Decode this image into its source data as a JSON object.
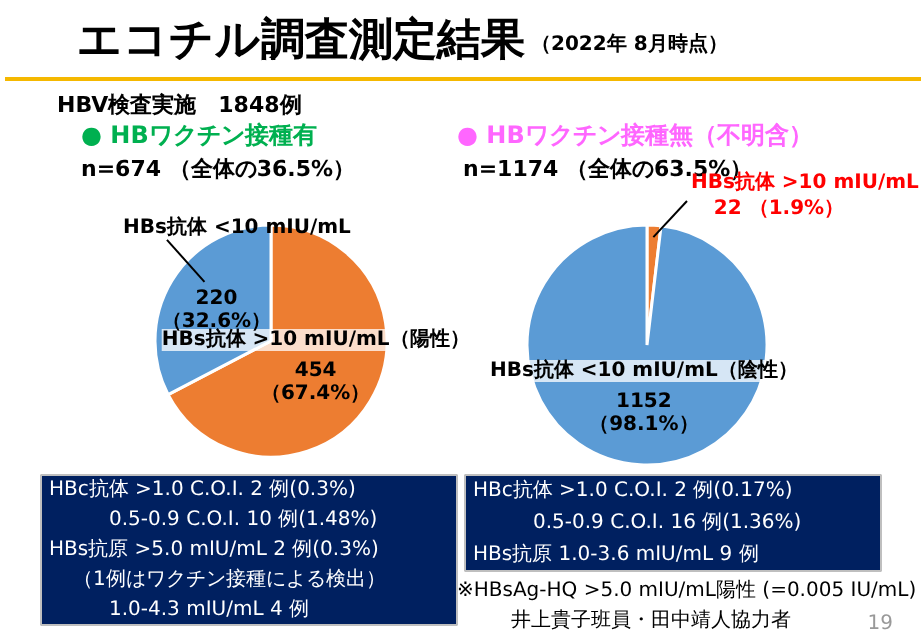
{
  "chart_data": [
    {
      "type": "other",
      "title": "エコチル調査測定結果",
      "subtitle": "（2022年 8月時点）",
      "annotations": [
        "HBV検査実施　1848例",
        "※HBsAg-HQ >5.0 mIU/mL陽性 (=0.005 IU/mL)",
        "井上貴子班員・田中靖人協力者",
        "19"
      ]
    },
    {
      "type": "pie",
      "title": "● HBワクチン接種有",
      "subtitle": "n=674 （全体の36.5%）",
      "categories": [
        "HBs抗体 >10 mIU/mL（陽性）",
        "HBs抗体 <10 mIU/mL"
      ],
      "values": [
        454,
        220
      ],
      "colors": [
        "#ed7d31",
        "#5b9bd5"
      ],
      "value_labels": [
        "454\n（67.4%）",
        "220\n（32.6%）"
      ],
      "annotations": [
        "HBc抗体 >1.0 C.O.I.   2 例(0.3%)",
        "0.5-0.9 C.O.I.  10 例(1.48%)",
        "HBs抗原 >5.0 mIU/mL  2 例(0.3%)",
        "（1例はワクチン接種による検出）",
        "1.0-4.3 mIU/mL   4 例"
      ]
    },
    {
      "type": "pie",
      "title": "● HBワクチン接種無（不明含）",
      "subtitle": "n=1174 （全体の63.5%）",
      "categories": [
        "HBs抗体 >10 mIU/mL",
        "HBs抗体 <10 mIU/mL（陰性）"
      ],
      "values": [
        22,
        1152
      ],
      "colors": [
        "#ed7d31",
        "#5b9bd5"
      ],
      "value_labels": [
        "22 （1.9%）",
        "1152\n（98.1%）"
      ],
      "annotations": [
        "HBc抗体 >1.0 C.O.I.   2 例(0.17%)",
        "0.5-0.9 C.O.I.  16 例(1.36%)",
        "HBs抗原 1.0-3.6 mIU/mL  9 例"
      ]
    }
  ]
}
